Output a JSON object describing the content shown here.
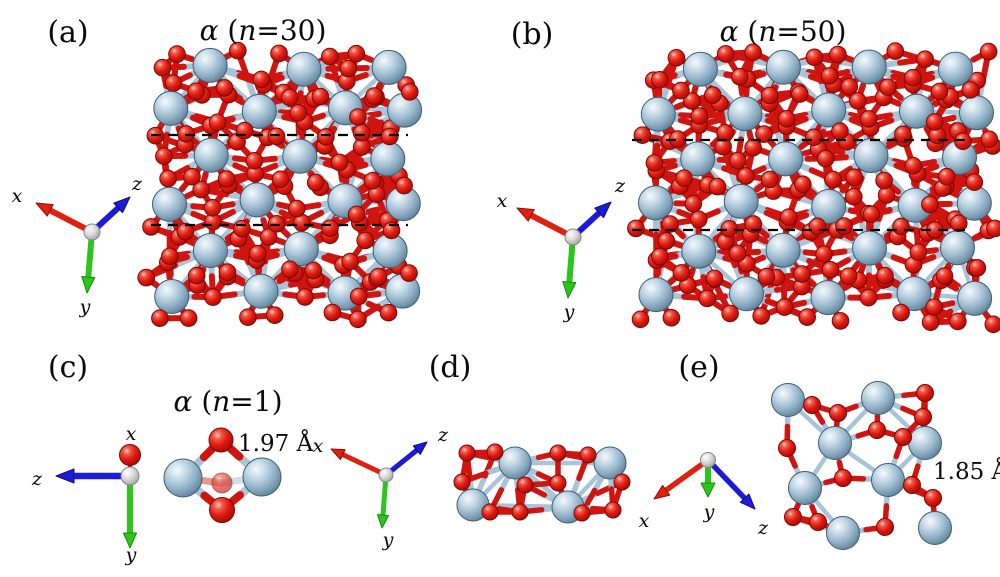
{
  "figure": {
    "background": "#ffffff",
    "panels": {
      "a": {
        "label": "(a)",
        "title": "α (n=30)",
        "title_parts": [
          [
            "α",
            1
          ],
          [
            " (",
            0
          ],
          [
            "n",
            1
          ],
          [
            "=30)",
            0
          ]
        ],
        "axes": {
          "x": "x",
          "y": "y",
          "z": "z"
        }
      },
      "b": {
        "label": "(b)",
        "title": "α (n=50)",
        "title_parts": [
          [
            "α",
            1
          ],
          [
            " (",
            0
          ],
          [
            "n",
            1
          ],
          [
            "=50)",
            0
          ]
        ],
        "axes": {
          "x": "x",
          "y": "y",
          "z": "z"
        }
      },
      "c": {
        "label": "(c)",
        "title": "α (n=1)",
        "title_parts": [
          [
            "α",
            1
          ],
          [
            " (",
            0
          ],
          [
            "n",
            1
          ],
          [
            "=1)",
            0
          ]
        ],
        "axes": {
          "x": "x",
          "y": "y",
          "z": "z"
        },
        "bond_length": "1.97 Å"
      },
      "d": {
        "label": "(d)",
        "axes": {
          "x": "x",
          "y": "y",
          "z": "z"
        }
      },
      "e": {
        "label": "(e)",
        "axes": {
          "x": "x",
          "y": "y",
          "z": "z"
        },
        "bond_length": "1.85 Å"
      }
    },
    "colors": {
      "metal_atom": "#8fafc5",
      "metal_highlight": "#f5fafd",
      "metal_mid": "#c3d8e6",
      "metal_shadow": "#5a7b92",
      "metal_outline": "#3c5d74",
      "oxygen_atom": "#df1a10",
      "oxygen_highlight": "#ffc9bc",
      "oxygen_mid": "#f0594a",
      "oxygen_shadow": "#9a0b05",
      "oxygen_outline": "#7c0803",
      "metal_bond": "#a9c4d9",
      "oxygen_bond": "#d01510",
      "axis_x": "#e02010",
      "axis_x_dark": "#8e1206",
      "axis_y": "#2bc51c",
      "axis_y_dark": "#128c0a",
      "axis_z": "#1b1bd8",
      "axis_z_dark": "#10107e",
      "origin_highlight": "#ffffff",
      "origin_base": "#d8d8d8",
      "origin_shadow": "#a0a0a0",
      "origin_outline": "#858585",
      "dashed_line": "#000000",
      "text": "#0a0a0a"
    }
  }
}
